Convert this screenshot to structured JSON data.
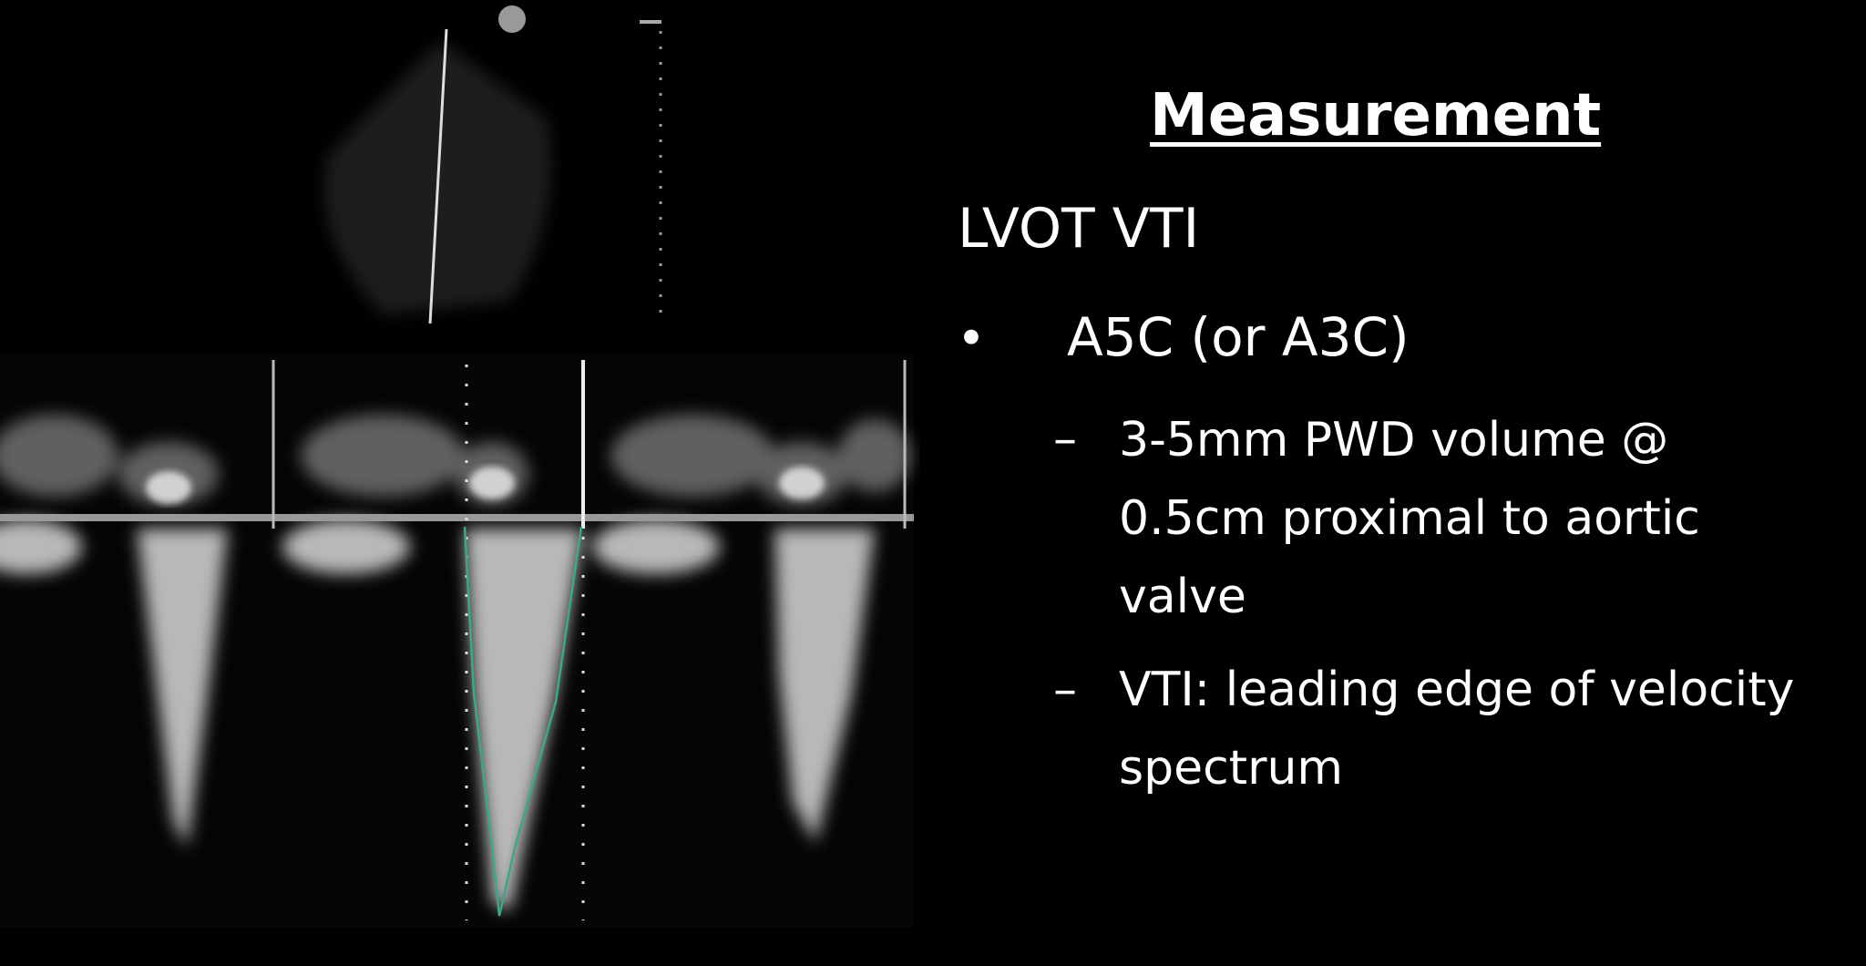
{
  "slide": {
    "title": "Measurement",
    "heading": "LVOT VTI",
    "bullet": {
      "text": "A5C (or A3C)",
      "items": [
        "3-5mm PWD volume @ 0.5cm proximal to aortic valve",
        "VTI: leading edge of velocity spectrum"
      ]
    }
  }
}
